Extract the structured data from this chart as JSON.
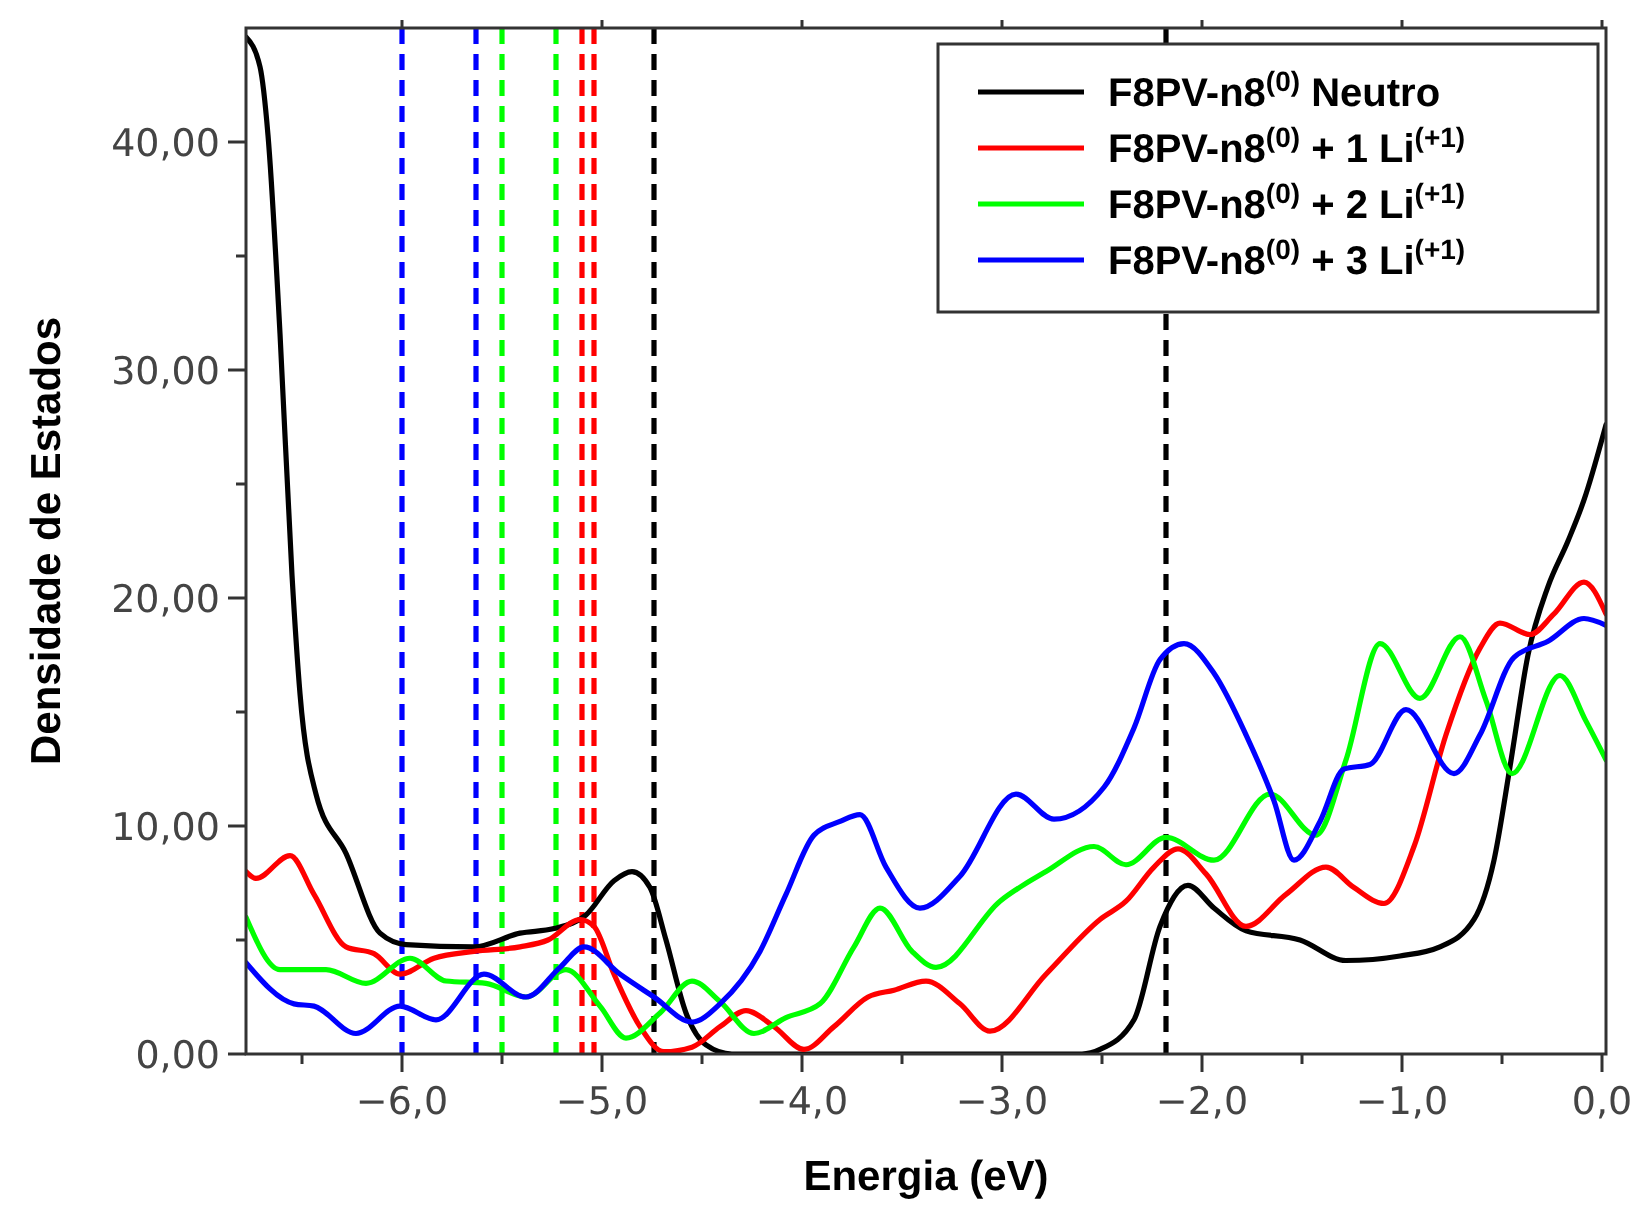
{
  "chart_data": {
    "type": "line",
    "xlabel": "Energia (eV)",
    "ylabel": "Densidade de Estados",
    "xlim": [
      -6.78,
      0.02
    ],
    "ylim": [
      0,
      45
    ],
    "xticks": [
      {
        "value": -6.5,
        "label": null
      },
      {
        "value": -6,
        "label": "−6,0"
      },
      {
        "value": -5.5,
        "label": null
      },
      {
        "value": -5,
        "label": "−5,0"
      },
      {
        "value": -4.5,
        "label": null
      },
      {
        "value": -4,
        "label": "−4,0"
      },
      {
        "value": -3.5,
        "label": null
      },
      {
        "value": -3,
        "label": "−3,0"
      },
      {
        "value": -2.5,
        "label": null
      },
      {
        "value": -2,
        "label": "−2,0"
      },
      {
        "value": -1.5,
        "label": null
      },
      {
        "value": -1,
        "label": "−1,0"
      },
      {
        "value": -0.5,
        "label": null
      },
      {
        "value": 0,
        "label": "0,0"
      }
    ],
    "yticks": [
      {
        "value": 0,
        "label": "0,00"
      },
      {
        "value": 5,
        "label": null
      },
      {
        "value": 10,
        "label": "10,00"
      },
      {
        "value": 15,
        "label": null
      },
      {
        "value": 20,
        "label": "20,00"
      },
      {
        "value": 25,
        "label": null
      },
      {
        "value": 30,
        "label": "30,00"
      },
      {
        "value": 35,
        "label": null
      },
      {
        "value": 40,
        "label": "40,00"
      }
    ],
    "grid": false,
    "legend": "top right",
    "line_style": "solid",
    "marker": "none",
    "series": [
      {
        "name": "F8PV-n8$^{(0)}$ Neutro",
        "color": "#000000",
        "x": [
          -6.78,
          -6.71,
          -6.67,
          -6.61,
          -6.55,
          -6.51,
          -6.43,
          -6.28,
          -6.11,
          -5.98,
          -5.64,
          -5.41,
          -5.24,
          -5.08,
          -4.94,
          -4.85,
          -4.76,
          -4.68,
          -4.58,
          -4.48,
          -4.35,
          -3.5,
          -2.6,
          -2.51,
          -2.34,
          -2.21,
          -2.07,
          -1.94,
          -1.78,
          -1.51,
          -1.28,
          -1.01,
          -0.81,
          -0.64,
          -0.54,
          -0.46,
          -0.37,
          -0.27,
          -0.17,
          -0.09,
          0.02
        ],
        "values": [
          44.6,
          43.3,
          40.3,
          31.6,
          21,
          15.8,
          11.4,
          8.8,
          5.3,
          4.8,
          4.7,
          5.3,
          5.5,
          6.1,
          7.6,
          8,
          7.3,
          5,
          1.8,
          0.4,
          0,
          0,
          0,
          0.2,
          1.5,
          5.6,
          7.4,
          6.4,
          5.4,
          5,
          4.1,
          4.3,
          4.7,
          5.9,
          8.5,
          12.6,
          17.5,
          20.5,
          22.5,
          24.3,
          27.6
        ]
      },
      {
        "name": "F8PV-n8$^{(0)}$ + 1 Li$^{(+1)}$",
        "color": "#ff0000",
        "x": [
          -6.78,
          -6.73,
          -6.56,
          -6.44,
          -6.28,
          -6.14,
          -6.01,
          -5.84,
          -5.64,
          -5.41,
          -5.27,
          -5.11,
          -5.04,
          -4.94,
          -4.81,
          -4.69,
          -4.55,
          -4.41,
          -4.28,
          -4.14,
          -3.99,
          -3.84,
          -3.67,
          -3.54,
          -3.38,
          -3.21,
          -3.06,
          -2.78,
          -2.51,
          -2.38,
          -2.24,
          -2.12,
          -1.98,
          -1.78,
          -1.58,
          -1.38,
          -1.24,
          -1.09,
          -0.94,
          -0.78,
          -0.61,
          -0.51,
          -0.36,
          -0.24,
          -0.09,
          0.02
        ],
        "values": [
          8,
          7.7,
          8.7,
          7,
          4.7,
          4.4,
          3.5,
          4.2,
          4.5,
          4.7,
          5,
          5.9,
          5.6,
          3.5,
          1.2,
          0.1,
          0.3,
          1.2,
          1.9,
          1.2,
          0.2,
          1.2,
          2.5,
          2.8,
          3.2,
          2.2,
          1,
          3.5,
          5.9,
          6.7,
          8.2,
          9,
          7.9,
          5.6,
          7,
          8.2,
          7.3,
          6.6,
          9.1,
          14,
          17.8,
          18.9,
          18.4,
          19.3,
          20.7,
          19.3
        ]
      },
      {
        "name": "F8PV-n8$^{(0)}$ + 2 Li$^{(+1)}$",
        "color": "#00ff00",
        "x": [
          -6.78,
          -6.61,
          -6.38,
          -6.18,
          -5.96,
          -5.78,
          -5.58,
          -5.38,
          -5.18,
          -5.01,
          -4.88,
          -4.71,
          -4.55,
          -4.41,
          -4.24,
          -4.08,
          -3.91,
          -3.74,
          -3.61,
          -3.45,
          -3.33,
          -3.01,
          -2.78,
          -2.54,
          -2.38,
          -2.18,
          -1.94,
          -1.66,
          -1.43,
          -1.28,
          -1.11,
          -0.91,
          -0.71,
          -0.58,
          -0.45,
          -0.21,
          -0.08,
          0.02
        ],
        "values": [
          6,
          3.7,
          3.7,
          3.1,
          4.2,
          3.2,
          3.1,
          2.5,
          3.7,
          2.1,
          0.7,
          1.8,
          3.2,
          2.3,
          0.9,
          1.6,
          2.2,
          4.7,
          6.4,
          4.5,
          3.8,
          6.7,
          8,
          9.1,
          8.3,
          9.5,
          8.5,
          11.4,
          9.6,
          12.9,
          18,
          15.6,
          18.3,
          15.5,
          12.3,
          16.6,
          14.6,
          12.9
        ]
      },
      {
        "name": "F8PV-n8$^{(0)}$ + 3 Li$^{(+1)}$",
        "color": "#0000ff",
        "x": [
          -6.78,
          -6.54,
          -6.44,
          -6.23,
          -6.01,
          -5.83,
          -5.59,
          -5.38,
          -5.21,
          -5.09,
          -4.91,
          -4.74,
          -4.55,
          -4.41,
          -4.21,
          -4.08,
          -3.94,
          -3.81,
          -3.71,
          -3.58,
          -3.41,
          -3.21,
          -2.93,
          -2.74,
          -2.49,
          -2.34,
          -2.21,
          -2.09,
          -1.94,
          -1.78,
          -1.64,
          -1.54,
          -1.41,
          -1.29,
          -1.16,
          -0.98,
          -0.74,
          -0.61,
          -0.44,
          -0.27,
          -0.09,
          0.02
        ],
        "values": [
          4,
          2.2,
          2.1,
          0.9,
          2.1,
          1.5,
          3.5,
          2.5,
          3.8,
          4.7,
          3.5,
          2.5,
          1.4,
          2.2,
          4.5,
          7,
          9.6,
          10.2,
          10.5,
          8.2,
          6.4,
          7.8,
          11.4,
          10.3,
          11.7,
          14.3,
          17.3,
          18,
          16.7,
          14,
          11.1,
          8.5,
          10.2,
          12.5,
          12.7,
          15.1,
          12.3,
          14,
          17.4,
          18.1,
          19.1,
          18.8
        ]
      }
    ],
    "ref_lines": [
      {
        "axis": "x",
        "value": -6.0,
        "color": "#0000ff",
        "line_style": "dashed"
      },
      {
        "axis": "x",
        "value": -5.63,
        "color": "#0000ff",
        "line_style": "dashed"
      },
      {
        "axis": "x",
        "value": -5.5,
        "color": "#00ff00",
        "line_style": "dashed"
      },
      {
        "axis": "x",
        "value": -5.23,
        "color": "#00ff00",
        "line_style": "dashed"
      },
      {
        "axis": "x",
        "value": -5.1,
        "color": "#ff0000",
        "line_style": "dashed"
      },
      {
        "axis": "x",
        "value": -5.04,
        "color": "#ff0000",
        "line_style": "dashed"
      },
      {
        "axis": "x",
        "value": -4.74,
        "color": "#000000",
        "line_style": "dashed"
      },
      {
        "axis": "x",
        "value": -2.18,
        "color": "#000000",
        "line_style": "dashed"
      }
    ]
  }
}
